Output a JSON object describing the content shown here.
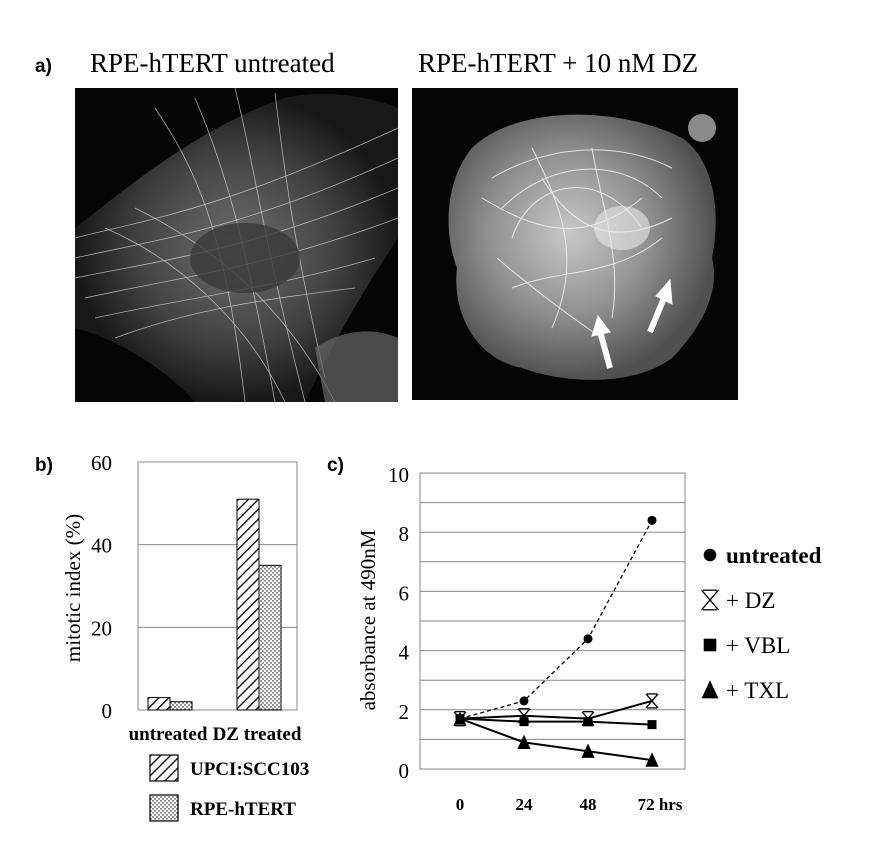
{
  "panel_a": {
    "label": "a)",
    "left_title": "RPE-hTERT untreated",
    "right_title": "RPE-hTERT + 10 nM DZ"
  },
  "chart_data": [
    {
      "panel": "b)",
      "type": "bar",
      "categories": [
        "untreated",
        "DZ treated"
      ],
      "series": [
        {
          "name": "UPCI:SCC103",
          "values": [
            3,
            51
          ],
          "pattern": "diagonal-hatch"
        },
        {
          "name": "RPE-hTERT",
          "values": [
            2,
            35
          ],
          "pattern": "stipple"
        }
      ],
      "ylabel": "mitotic index (%)",
      "yticks": [
        0,
        20,
        40,
        60
      ],
      "ylim": [
        0,
        60
      ],
      "grid": true,
      "legend": "bottom"
    },
    {
      "panel": "c)",
      "type": "line",
      "x": [
        0,
        24,
        48,
        72
      ],
      "xtick_labels": [
        "0",
        "24",
        "48",
        "72 hrs"
      ],
      "series": [
        {
          "name": "untreated",
          "marker": "circle",
          "line": "dashed",
          "values": [
            1.7,
            2.3,
            4.4,
            8.4
          ]
        },
        {
          "name": "+ DZ",
          "marker": "x",
          "line": "solid",
          "values": [
            1.7,
            1.8,
            1.7,
            2.3
          ]
        },
        {
          "name": "+ VBL",
          "marker": "square",
          "line": "solid",
          "values": [
            1.7,
            1.6,
            1.6,
            1.5
          ]
        },
        {
          "name": "+ TXL",
          "marker": "triangle",
          "line": "solid",
          "values": [
            1.7,
            0.9,
            0.6,
            0.3
          ]
        }
      ],
      "ylabel": "absorbance at 490nM",
      "yticks": [
        0,
        2,
        4,
        6,
        8,
        10
      ],
      "ylim": [
        0,
        10
      ],
      "grid": true,
      "legend": "right"
    }
  ]
}
